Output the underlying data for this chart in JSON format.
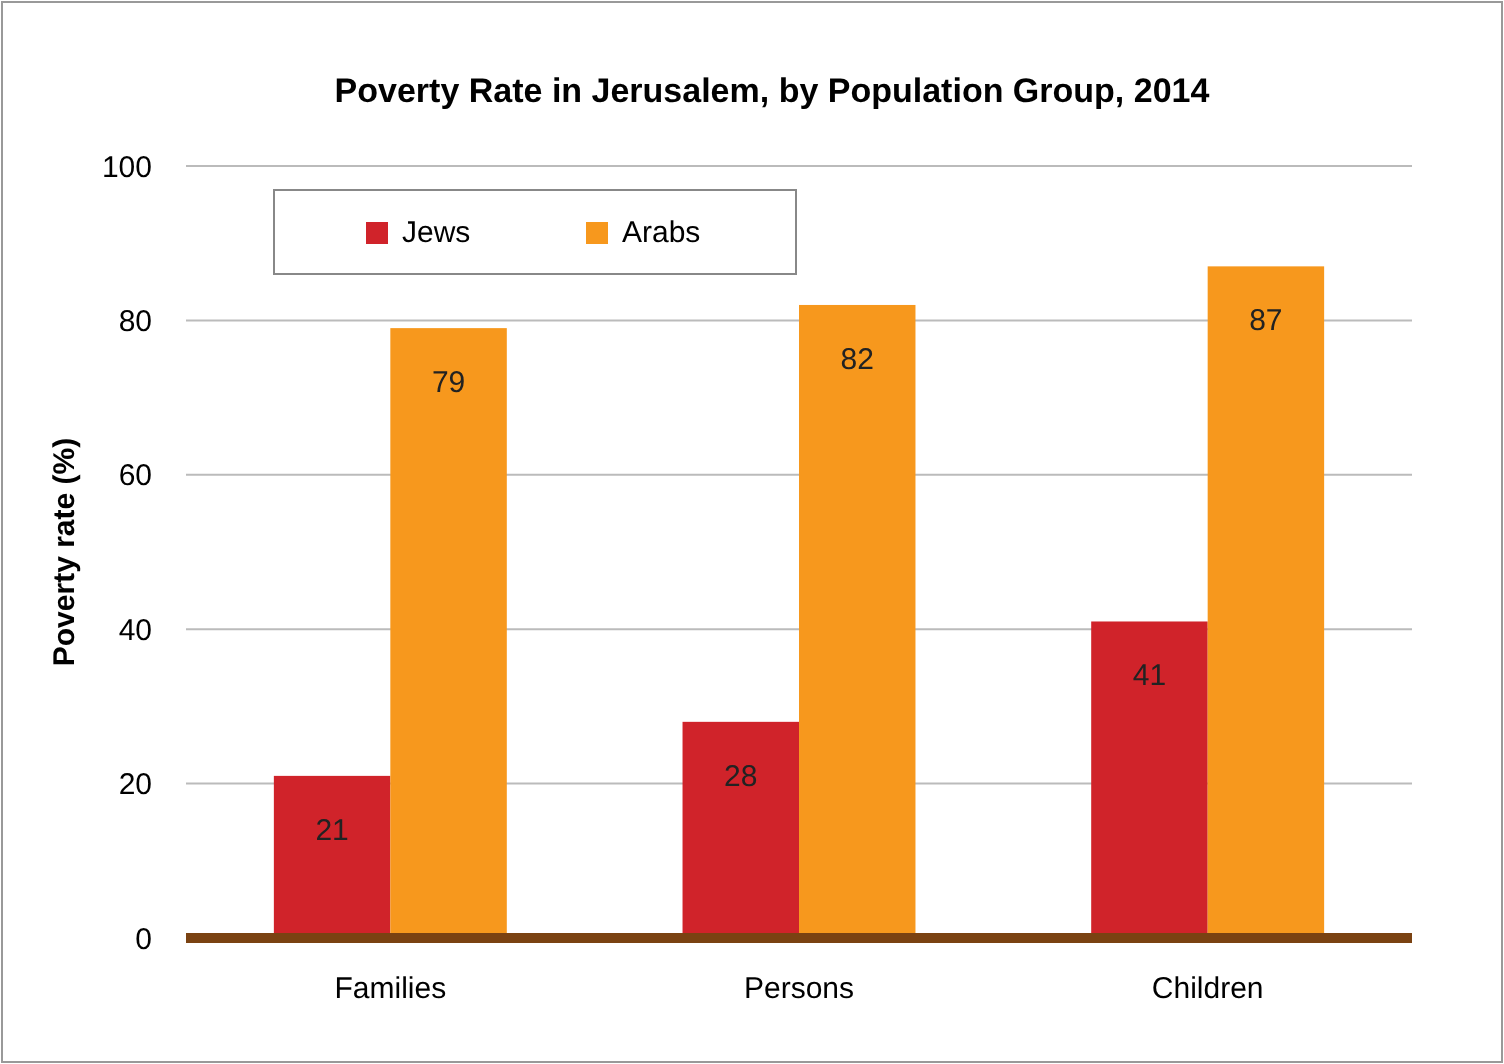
{
  "chart_data": {
    "type": "bar",
    "title": "Poverty Rate in Jerusalem, by Population Group, 2014",
    "ylabel": "Poverty rate (%)",
    "categories": [
      "Families",
      "Persons",
      "Children"
    ],
    "series": [
      {
        "name": "Jews",
        "color": "#d0232a",
        "values": [
          21,
          28,
          41
        ]
      },
      {
        "name": "Arabs",
        "color": "#f7981d",
        "values": [
          79,
          82,
          87
        ]
      }
    ],
    "ylim": [
      0,
      100
    ],
    "yticks": [
      0,
      20,
      40,
      60,
      80,
      100
    ],
    "grid": "y",
    "legend": "top left",
    "data_labels": true
  }
}
